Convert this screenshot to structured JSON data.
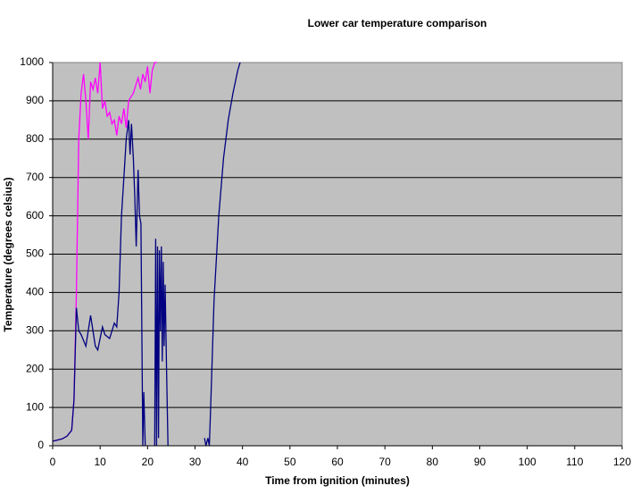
{
  "chart_data": {
    "type": "line",
    "title": "Lower car temperature comparison",
    "x_label": "Time from ignition (minutes)",
    "y_label": "Temperature (degrees celsius)",
    "xlim": [
      0,
      120
    ],
    "xticks": [
      0,
      10,
      20,
      30,
      40,
      50,
      60,
      70,
      80,
      90,
      100,
      110,
      120
    ],
    "ylim": [
      0,
      1000
    ],
    "yticks": [
      0,
      100,
      200,
      300,
      400,
      500,
      600,
      700,
      800,
      900,
      1000
    ],
    "grid": true,
    "plot_background": "#c0c0c0",
    "series": [
      {
        "color": "#ff00ff",
        "x": [
          0,
          1,
          2,
          3,
          4,
          4.5,
          5,
          5.5,
          6,
          6.5,
          7,
          7.5,
          8,
          8.5,
          9,
          9.5,
          10,
          10.5,
          11,
          11.5,
          12,
          12.5,
          13,
          13.5,
          14,
          14.5,
          15,
          15.5,
          16,
          16.5,
          17,
          17.5,
          18,
          18.5,
          19,
          19.5,
          20,
          20.5,
          21,
          21.5,
          22
        ],
        "values": [
          12,
          15,
          18,
          25,
          40,
          120,
          400,
          800,
          920,
          970,
          900,
          800,
          950,
          930,
          960,
          920,
          1000,
          880,
          900,
          860,
          870,
          840,
          850,
          810,
          860,
          840,
          880,
          830,
          900,
          910,
          920,
          940,
          960,
          930,
          970,
          950,
          990,
          920,
          980,
          1000,
          1000
        ]
      },
      {
        "color": "#000080",
        "x": [
          0,
          1,
          2,
          3,
          4,
          4.5,
          5,
          5.5,
          6,
          7,
          8,
          9,
          9.5,
          10.5,
          11,
          12,
          13,
          13.5,
          14,
          14.5,
          15,
          15.5,
          16,
          16.3,
          16.6,
          17,
          17.3,
          17.6,
          18,
          18.3,
          18.6,
          19,
          19.2,
          19.5,
          19.6,
          21.5,
          21.7,
          21.9,
          22.1,
          22.3,
          22.5,
          22.7,
          22.9,
          23.1,
          23.3,
          23.5,
          23.7,
          24,
          24.3,
          24.5,
          32,
          32.3,
          32.7,
          33,
          33.3,
          34,
          35,
          36,
          37,
          38,
          39,
          39.5
        ],
        "values": [
          12,
          15,
          18,
          25,
          40,
          120,
          360,
          300,
          290,
          260,
          340,
          260,
          250,
          310,
          290,
          280,
          320,
          310,
          400,
          600,
          700,
          800,
          850,
          760,
          840,
          750,
          650,
          520,
          720,
          600,
          580,
          0,
          140,
          0,
          null,
          0,
          540,
          0,
          520,
          20,
          510,
          300,
          520,
          220,
          480,
          260,
          420,
          200,
          0,
          null,
          20,
          0,
          20,
          0,
          100,
          380,
          600,
          750,
          850,
          920,
          980,
          1000
        ]
      }
    ]
  }
}
